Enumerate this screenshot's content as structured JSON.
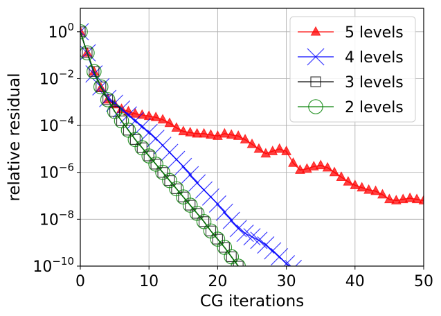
{
  "chart_data": {
    "type": "line",
    "title": "",
    "xlabel": "CG iterations",
    "ylabel": "relative residual",
    "xlim": [
      0,
      50
    ],
    "ylim_log10": [
      -10,
      1.0
    ],
    "yscale": "log",
    "grid": true,
    "legend_position": "top-right",
    "x_ticks": [
      {
        "value": 0,
        "label": "0"
      },
      {
        "value": 10,
        "label": "10"
      },
      {
        "value": 20,
        "label": "20"
      },
      {
        "value": 30,
        "label": "30"
      },
      {
        "value": 40,
        "label": "40"
      },
      {
        "value": 50,
        "label": "50"
      }
    ],
    "y_ticks": [
      {
        "exp": 0,
        "base": "10",
        "sup": "0"
      },
      {
        "exp": -2,
        "base": "10",
        "sup": "−2"
      },
      {
        "exp": -4,
        "base": "10",
        "sup": "−4"
      },
      {
        "exp": -6,
        "base": "10",
        "sup": "−6"
      },
      {
        "exp": -8,
        "base": "10",
        "sup": "−8"
      },
      {
        "exp": -10,
        "base": "10",
        "sup": "−10"
      }
    ],
    "series": [
      {
        "name": "5 levels",
        "color": "#ff0000",
        "marker": "triangle",
        "x": [
          0,
          1,
          2,
          3,
          4,
          5,
          6,
          7,
          8,
          9,
          10,
          11,
          12,
          13,
          14,
          15,
          16,
          17,
          18,
          19,
          20,
          21,
          22,
          23,
          24,
          25,
          26,
          27,
          28,
          29,
          30,
          31,
          32,
          33,
          34,
          35,
          36,
          37,
          38,
          39,
          40,
          41,
          42,
          43,
          44,
          45,
          46,
          47,
          48,
          49,
          50
        ],
        "log10_values": [
          0,
          -0.9,
          -1.7,
          -2.4,
          -2.9,
          -3.1,
          -3.3,
          -3.4,
          -3.5,
          -3.55,
          -3.6,
          -3.65,
          -3.75,
          -3.9,
          -4.1,
          -4.25,
          -4.3,
          -4.35,
          -4.35,
          -4.4,
          -4.45,
          -4.35,
          -4.4,
          -4.45,
          -4.6,
          -4.8,
          -5.0,
          -5.2,
          -5.1,
          -5.0,
          -5.1,
          -5.6,
          -5.9,
          -5.85,
          -5.75,
          -5.7,
          -5.8,
          -6.0,
          -6.2,
          -6.4,
          -6.55,
          -6.65,
          -6.75,
          -6.8,
          -6.95,
          -7.15,
          -7.2,
          -7.15,
          -7.1,
          -7.15,
          -7.2
        ]
      },
      {
        "name": "4 levels",
        "color": "#0000ff",
        "marker": "x",
        "x": [
          0,
          1,
          2,
          3,
          4,
          5,
          6,
          7,
          8,
          9,
          10,
          11,
          12,
          13,
          14,
          15,
          16,
          17,
          18,
          19,
          20,
          21,
          22,
          23,
          24,
          25,
          26,
          27,
          28,
          29,
          30,
          31
        ],
        "log10_values": [
          0,
          -0.9,
          -1.8,
          -2.35,
          -2.85,
          -3.05,
          -3.3,
          -3.55,
          -3.8,
          -4.05,
          -4.3,
          -4.55,
          -4.85,
          -5.15,
          -5.45,
          -5.75,
          -6.1,
          -6.45,
          -6.75,
          -7.05,
          -7.35,
          -7.7,
          -8.05,
          -8.4,
          -8.6,
          -8.75,
          -8.9,
          -9.1,
          -9.35,
          -9.6,
          -9.9,
          -10.1
        ]
      },
      {
        "name": "3 levels",
        "color": "#000000",
        "marker": "square",
        "x": [
          0,
          1,
          2,
          3,
          4,
          5,
          6,
          7,
          8,
          9,
          10,
          11,
          12,
          13,
          14,
          15,
          16,
          17,
          18,
          19,
          20,
          21,
          22,
          23
        ],
        "log10_values": [
          0,
          -0.9,
          -1.7,
          -2.35,
          -2.9,
          -3.4,
          -3.8,
          -4.2,
          -4.6,
          -4.95,
          -5.3,
          -5.65,
          -6.0,
          -6.35,
          -6.7,
          -7.05,
          -7.4,
          -7.75,
          -8.1,
          -8.5,
          -8.85,
          -9.2,
          -9.6,
          -10.0
        ]
      },
      {
        "name": "2 levels",
        "color": "#008000",
        "marker": "circle",
        "x": [
          0,
          1,
          2,
          3,
          4,
          5,
          6,
          7,
          8,
          9,
          10,
          11,
          12,
          13,
          14,
          15,
          16,
          17,
          18,
          19,
          20,
          21,
          22,
          23
        ],
        "log10_values": [
          0,
          -0.9,
          -1.7,
          -2.35,
          -2.9,
          -3.4,
          -3.8,
          -4.2,
          -4.6,
          -4.95,
          -5.3,
          -5.65,
          -6.0,
          -6.35,
          -6.7,
          -7.05,
          -7.4,
          -7.75,
          -8.1,
          -8.5,
          -8.85,
          -9.2,
          -9.6,
          -10.0
        ]
      }
    ]
  }
}
